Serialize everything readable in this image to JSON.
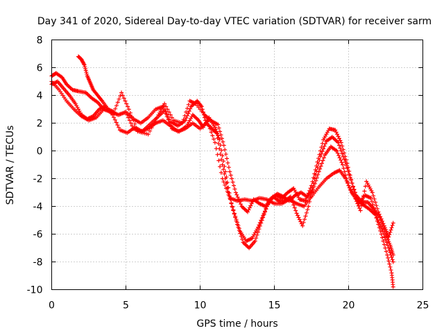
{
  "chart_data": {
    "type": "scatter",
    "title": "Day 341 of 2020, Sidereal Day-to-day VTEC variation (SDTVAR) for receiver sarm",
    "xlabel": "GPS time / hours",
    "ylabel": "SDTVAR / TECUs",
    "xlim": [
      0,
      25
    ],
    "ylim": [
      -10,
      8
    ],
    "xticks": [
      "0",
      "5",
      "10",
      "15",
      "20",
      "25"
    ],
    "yticks": [
      "-10",
      "-8",
      "-6",
      "-4",
      "-2",
      "0",
      "2",
      "4",
      "6",
      "8"
    ],
    "grid": true,
    "marker": "+",
    "color": "#ff0000",
    "series": [
      {
        "name": "track-1",
        "points": [
          [
            0,
            5.4
          ],
          [
            0.3,
            5.6
          ],
          [
            0.7,
            5.3
          ],
          [
            1.0,
            4.8
          ],
          [
            1.4,
            4.4
          ],
          [
            1.8,
            4.3
          ],
          [
            2.3,
            4.2
          ],
          [
            2.7,
            3.8
          ],
          [
            3.1,
            3.5
          ],
          [
            3.5,
            3.0
          ],
          [
            4.0,
            2.8
          ],
          [
            4.5,
            2.6
          ],
          [
            5.0,
            2.8
          ],
          [
            5.5,
            2.3
          ],
          [
            6.0,
            2.0
          ],
          [
            6.5,
            2.4
          ],
          [
            7.0,
            3.0
          ],
          [
            7.5,
            3.2
          ],
          [
            8.0,
            2.1
          ],
          [
            8.5,
            1.8
          ],
          [
            9.0,
            2.2
          ],
          [
            9.4,
            3.2
          ],
          [
            9.8,
            3.6
          ],
          [
            10.1,
            3.2
          ],
          [
            10.4,
            2.0
          ],
          [
            10.8,
            1.6
          ],
          [
            11.1,
            1.3
          ],
          [
            11.5,
            -1.0
          ],
          [
            11.9,
            -3.0
          ],
          [
            12.3,
            -4.5
          ],
          [
            12.7,
            -5.8
          ],
          [
            13.1,
            -6.5
          ],
          [
            13.5,
            -6.3
          ],
          [
            13.9,
            -5.5
          ],
          [
            14.3,
            -4.5
          ],
          [
            14.7,
            -3.5
          ],
          [
            15.1,
            -3.2
          ],
          [
            15.5,
            -3.4
          ],
          [
            15.9,
            -3.0
          ],
          [
            16.3,
            -2.7
          ],
          [
            16.7,
            -3.5
          ],
          [
            17.1,
            -3.6
          ],
          [
            17.5,
            -2.5
          ],
          [
            17.9,
            -0.8
          ],
          [
            18.3,
            0.8
          ],
          [
            18.7,
            1.6
          ],
          [
            19.1,
            1.5
          ],
          [
            19.5,
            0.6
          ],
          [
            19.9,
            -0.9
          ],
          [
            20.3,
            -2.6
          ],
          [
            20.7,
            -3.8
          ],
          [
            21.1,
            -3.2
          ],
          [
            21.5,
            -3.4
          ],
          [
            21.9,
            -4.8
          ],
          [
            22.3,
            -5.8
          ],
          [
            22.7,
            -7.0
          ],
          [
            23.0,
            -8.0
          ]
        ]
      },
      {
        "name": "track-2",
        "points": [
          [
            0,
            4.8
          ],
          [
            0.4,
            5.0
          ],
          [
            0.8,
            4.5
          ],
          [
            1.2,
            4.0
          ],
          [
            1.6,
            3.4
          ],
          [
            2.0,
            2.6
          ],
          [
            2.4,
            2.3
          ],
          [
            2.8,
            2.5
          ],
          [
            3.2,
            3.0
          ],
          [
            3.6,
            3.2
          ],
          [
            4.1,
            2.6
          ],
          [
            4.6,
            1.5
          ],
          [
            5.1,
            1.3
          ],
          [
            5.6,
            1.7
          ],
          [
            6.1,
            1.4
          ],
          [
            6.6,
            1.9
          ],
          [
            7.1,
            2.4
          ],
          [
            7.6,
            2.9
          ],
          [
            8.1,
            1.6
          ],
          [
            8.6,
            1.4
          ],
          [
            9.1,
            1.8
          ],
          [
            9.5,
            2.6
          ],
          [
            9.9,
            2.2
          ],
          [
            10.2,
            1.7
          ],
          [
            10.6,
            2.4
          ],
          [
            11.0,
            1.7
          ],
          [
            11.3,
            0.8
          ],
          [
            11.7,
            -1.5
          ],
          [
            12.1,
            -3.8
          ],
          [
            12.5,
            -5.3
          ],
          [
            12.9,
            -6.6
          ],
          [
            13.3,
            -7.0
          ],
          [
            13.7,
            -6.5
          ],
          [
            14.1,
            -5.2
          ],
          [
            14.5,
            -4.0
          ],
          [
            14.9,
            -3.3
          ],
          [
            15.3,
            -3.6
          ],
          [
            15.7,
            -3.6
          ],
          [
            16.1,
            -3.3
          ],
          [
            16.5,
            -4.5
          ],
          [
            16.9,
            -5.4
          ],
          [
            17.3,
            -4.0
          ],
          [
            17.7,
            -2.0
          ],
          [
            18.1,
            -0.4
          ],
          [
            18.5,
            0.7
          ],
          [
            18.9,
            1.0
          ],
          [
            19.3,
            0.6
          ],
          [
            19.7,
            -0.6
          ],
          [
            20.1,
            -1.9
          ],
          [
            20.5,
            -3.2
          ],
          [
            20.9,
            -3.7
          ],
          [
            21.3,
            -3.7
          ],
          [
            21.7,
            -4.2
          ],
          [
            22.1,
            -4.8
          ],
          [
            22.5,
            -6.0
          ],
          [
            22.8,
            -6.8
          ],
          [
            23.0,
            -7.5
          ]
        ]
      },
      {
        "name": "track-3",
        "points": [
          [
            0,
            5.0
          ],
          [
            0.5,
            4.4
          ],
          [
            1.0,
            3.6
          ],
          [
            1.5,
            3.0
          ],
          [
            2.0,
            2.5
          ],
          [
            2.5,
            2.2
          ],
          [
            3.0,
            2.4
          ],
          [
            3.5,
            3.0
          ],
          [
            4.0,
            2.8
          ],
          [
            4.5,
            2.6
          ],
          [
            5.0,
            2.8
          ],
          [
            5.5,
            1.6
          ],
          [
            6.0,
            1.4
          ],
          [
            6.5,
            1.6
          ],
          [
            7.0,
            2.0
          ],
          [
            7.5,
            2.2
          ],
          [
            8.0,
            1.8
          ],
          [
            8.5,
            1.4
          ],
          [
            9.0,
            1.6
          ],
          [
            9.5,
            2.0
          ],
          [
            10.0,
            1.6
          ],
          [
            10.5,
            2.1
          ],
          [
            11.0,
            0.6
          ],
          [
            11.5,
            -2.0
          ],
          [
            12.0,
            -3.4
          ],
          [
            12.5,
            -3.6
          ],
          [
            13.0,
            -3.5
          ],
          [
            13.5,
            -3.6
          ],
          [
            14.0,
            -3.4
          ],
          [
            14.5,
            -3.5
          ],
          [
            15.0,
            -3.8
          ],
          [
            15.5,
            -3.8
          ],
          [
            16.0,
            -3.5
          ],
          [
            16.5,
            -3.8
          ],
          [
            17.0,
            -4.0
          ],
          [
            17.5,
            -3.3
          ],
          [
            18.0,
            -2.6
          ],
          [
            18.5,
            -2.0
          ],
          [
            19.0,
            -1.6
          ],
          [
            19.4,
            -1.4
          ],
          [
            19.8,
            -2.0
          ],
          [
            20.2,
            -3.0
          ],
          [
            20.6,
            -3.6
          ],
          [
            21.0,
            -3.9
          ],
          [
            21.4,
            -4.2
          ],
          [
            21.8,
            -4.6
          ],
          [
            22.2,
            -6.0
          ],
          [
            22.6,
            -7.5
          ],
          [
            22.9,
            -8.8
          ],
          [
            23.0,
            -9.8
          ]
        ]
      },
      {
        "name": "track-4",
        "points": [
          [
            1.8,
            6.8
          ],
          [
            2.0,
            6.6
          ],
          [
            2.2,
            6.2
          ],
          [
            2.4,
            5.4
          ],
          [
            2.6,
            4.9
          ],
          [
            2.8,
            4.4
          ],
          [
            3.1,
            4.0
          ],
          [
            3.4,
            3.6
          ],
          [
            3.8,
            3.0
          ],
          [
            4.2,
            2.8
          ],
          [
            4.7,
            4.2
          ],
          [
            5.2,
            3.0
          ],
          [
            5.8,
            1.4
          ],
          [
            6.5,
            1.2
          ],
          [
            7.2,
            2.6
          ],
          [
            7.6,
            3.4
          ],
          [
            8.2,
            2.2
          ],
          [
            8.8,
            2.0
          ],
          [
            9.3,
            3.6
          ],
          [
            9.7,
            3.4
          ],
          [
            10.3,
            2.6
          ],
          [
            10.7,
            2.2
          ],
          [
            11.2,
            1.9
          ],
          [
            11.6,
            0.4
          ],
          [
            12.0,
            -1.5
          ],
          [
            12.4,
            -3.0
          ],
          [
            12.8,
            -4.0
          ],
          [
            13.2,
            -4.4
          ],
          [
            13.6,
            -3.5
          ],
          [
            14.0,
            -3.8
          ],
          [
            14.4,
            -4.0
          ],
          [
            14.8,
            -3.4
          ],
          [
            15.2,
            -3.1
          ],
          [
            15.6,
            -3.3
          ],
          [
            16.0,
            -3.6
          ],
          [
            16.4,
            -3.2
          ],
          [
            16.8,
            -3.0
          ],
          [
            17.2,
            -3.3
          ],
          [
            17.6,
            -2.8
          ],
          [
            18.0,
            -1.5
          ],
          [
            18.4,
            -0.3
          ],
          [
            18.8,
            0.3
          ],
          [
            19.2,
            0.0
          ],
          [
            19.6,
            -1.0
          ],
          [
            20.0,
            -2.5
          ],
          [
            20.4,
            -3.3
          ],
          [
            20.8,
            -4.3
          ],
          [
            21.2,
            -2.2
          ],
          [
            21.6,
            -3.0
          ],
          [
            22.0,
            -4.4
          ],
          [
            22.4,
            -5.4
          ],
          [
            22.7,
            -6.2
          ],
          [
            23.0,
            -5.2
          ]
        ]
      }
    ]
  }
}
